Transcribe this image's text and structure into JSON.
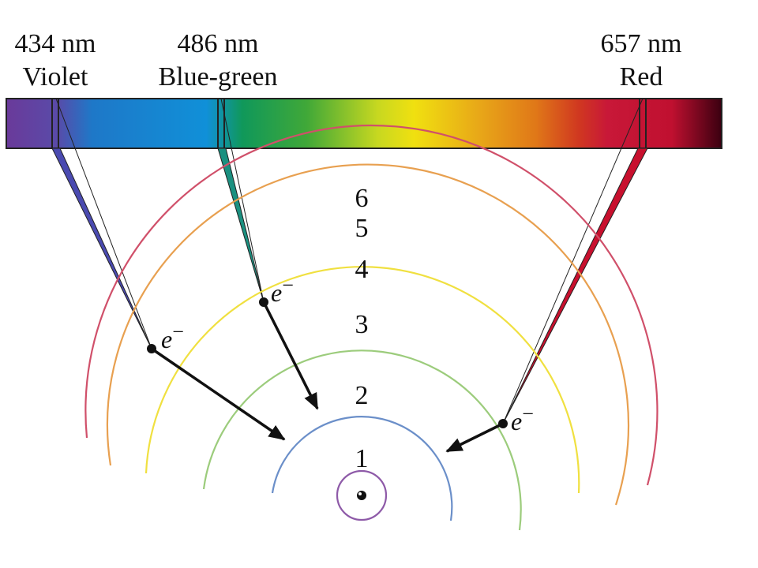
{
  "spectrum_lines": [
    {
      "wavelength": "434 nm",
      "color_name": "Violet"
    },
    {
      "wavelength": "486 nm",
      "color_name": "Blue-green"
    },
    {
      "wavelength": "657 nm",
      "color_name": "Red"
    }
  ],
  "orbits": [
    {
      "label": "1"
    },
    {
      "label": "2"
    },
    {
      "label": "3"
    },
    {
      "label": "4"
    },
    {
      "label": "5"
    },
    {
      "label": "6"
    }
  ],
  "electrons": [
    {
      "symbol": "e",
      "charge": "−"
    },
    {
      "symbol": "e",
      "charge": "−"
    },
    {
      "symbol": "e",
      "charge": "−"
    }
  ]
}
